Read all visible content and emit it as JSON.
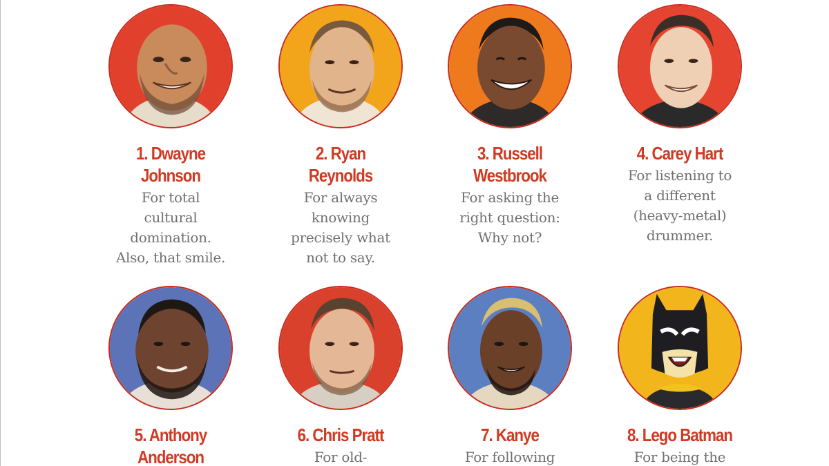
{
  "colors": {
    "name_red": "#d03a22",
    "description_gray": "#707070",
    "ring_red": "#c92a1b"
  },
  "honorees": [
    {
      "name_lines": [
        "1. Dwayne",
        "Johnson"
      ],
      "description_lines": [
        "For total",
        "cultural",
        "domination.",
        "Also, that smile."
      ],
      "background": "#e0402c"
    },
    {
      "name_lines": [
        "2. Ryan",
        "Reynolds"
      ],
      "description_lines": [
        "For always",
        "knowing",
        "precisely what",
        "not to say."
      ],
      "background": "#f2a51a"
    },
    {
      "name_lines": [
        "3. Russell",
        "Westbrook"
      ],
      "description_lines": [
        "For asking the",
        "right question:",
        "Why not?"
      ],
      "background": "#ef7a1e"
    },
    {
      "name_lines": [
        "4. Carey Hart"
      ],
      "description_lines": [
        "For listening to",
        "a different",
        "(heavy-metal)",
        "drummer."
      ],
      "background": "#e54430"
    },
    {
      "name_lines": [
        "5. Anthony",
        "Anderson"
      ],
      "description_lines": [],
      "background": "#5d73b8"
    },
    {
      "name_lines": [
        "6. Chris Pratt"
      ],
      "description_lines": [
        "For old-"
      ],
      "background": "#d9412c"
    },
    {
      "name_lines": [
        "7. Kanye"
      ],
      "description_lines": [
        "For following"
      ],
      "background": "#5c7fc2"
    },
    {
      "name_lines": [
        "8. Lego Batman"
      ],
      "description_lines": [
        "For being the"
      ],
      "background": "#f3b51c"
    }
  ]
}
